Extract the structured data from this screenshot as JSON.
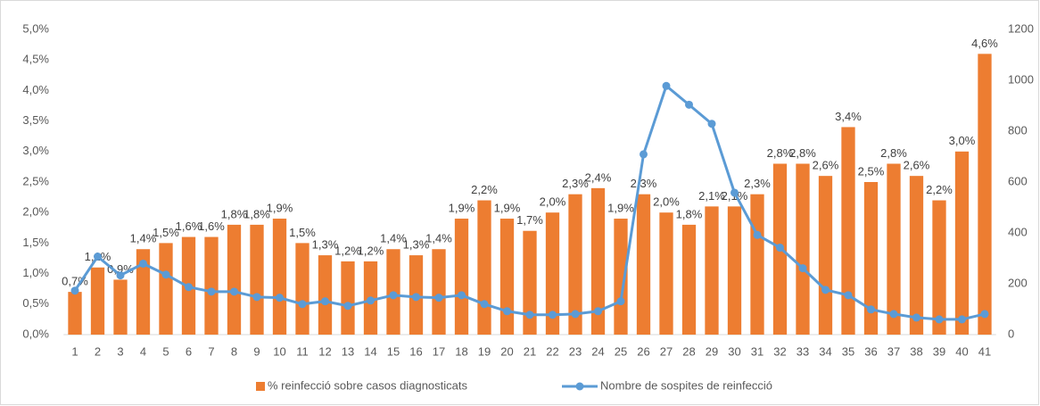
{
  "chart_data": {
    "type": "bar_line",
    "categories": [
      "1",
      "2",
      "3",
      "4",
      "5",
      "6",
      "7",
      "8",
      "9",
      "10",
      "11",
      "12",
      "13",
      "14",
      "15",
      "16",
      "17",
      "18",
      "19",
      "20",
      "21",
      "22",
      "23",
      "24",
      "25",
      "26",
      "27",
      "28",
      "29",
      "30",
      "31",
      "32",
      "33",
      "34",
      "35",
      "36",
      "37",
      "38",
      "39",
      "40",
      "41"
    ],
    "series": [
      {
        "name": "% reinfecció sobre casos diagnosticats",
        "type": "bar",
        "color": "#ed7d31",
        "values": [
          0.7,
          1.1,
          0.9,
          1.4,
          1.5,
          1.6,
          1.6,
          1.8,
          1.8,
          1.9,
          1.5,
          1.3,
          1.2,
          1.2,
          1.4,
          1.3,
          1.4,
          1.9,
          2.2,
          1.9,
          1.7,
          2.0,
          2.3,
          2.4,
          1.9,
          2.3,
          2.0,
          1.8,
          2.1,
          2.1,
          2.3,
          2.8,
          2.8,
          2.6,
          3.4,
          2.5,
          2.8,
          2.6,
          2.2,
          3.0,
          4.6
        ],
        "value_labels": [
          "0,7%",
          "1,1%",
          "0,9%",
          "1,4%",
          "1,5%",
          "1,6%",
          "1,6%",
          "1,8%",
          "1,8%",
          "1,9%",
          "1,5%",
          "1,3%",
          "1,2%",
          "1,2%",
          "1,4%",
          "1,3%",
          "1,4%",
          "1,9%",
          "2,2%",
          "1,9%",
          "1,7%",
          "2,0%",
          "2,3%",
          "2,4%",
          "1,9%",
          "2,3%",
          "2,0%",
          "1,8%",
          "2,1%",
          "2,1%",
          "2,3%",
          "2,8%",
          "2,8%",
          "2,6%",
          "3,4%",
          "2,5%",
          "2,8%",
          "2,6%",
          "2,2%",
          "3,0%",
          "4,6%"
        ]
      },
      {
        "name": "Nombre de sospites de reinfecció",
        "type": "line",
        "color": "#5b9bd5",
        "axis": "y2",
        "values": [
          173,
          307,
          233,
          279,
          236,
          187,
          169,
          169,
          148,
          145,
          120,
          131,
          113,
          134,
          155,
          148,
          145,
          155,
          120,
          92,
          78,
          78,
          81,
          92,
          131,
          709,
          978,
          904,
          829,
          558,
          392,
          342,
          261,
          176,
          155,
          99,
          81,
          67,
          60,
          60,
          81
        ]
      }
    ],
    "ylim": [
      0,
      5
    ],
    "yticks": [
      {
        "value": 0,
        "label": "0,0%"
      },
      {
        "value": 0.5,
        "label": "0,5%"
      },
      {
        "value": 1,
        "label": "1,0%"
      },
      {
        "value": 1.5,
        "label": "1,5%"
      },
      {
        "value": 2,
        "label": "2,0%"
      },
      {
        "value": 2.5,
        "label": "2,5%"
      },
      {
        "value": 3,
        "label": "3,0%"
      },
      {
        "value": 3.5,
        "label": "3,5%"
      },
      {
        "value": 4,
        "label": "4,0%"
      },
      {
        "value": 4.5,
        "label": "4,5%"
      },
      {
        "value": 5,
        "label": "5,0%"
      }
    ],
    "y2lim": [
      0,
      1200
    ],
    "y2ticks": [
      0,
      200,
      400,
      600,
      800,
      1000,
      1200
    ],
    "grid": false,
    "legend": "bottom"
  }
}
